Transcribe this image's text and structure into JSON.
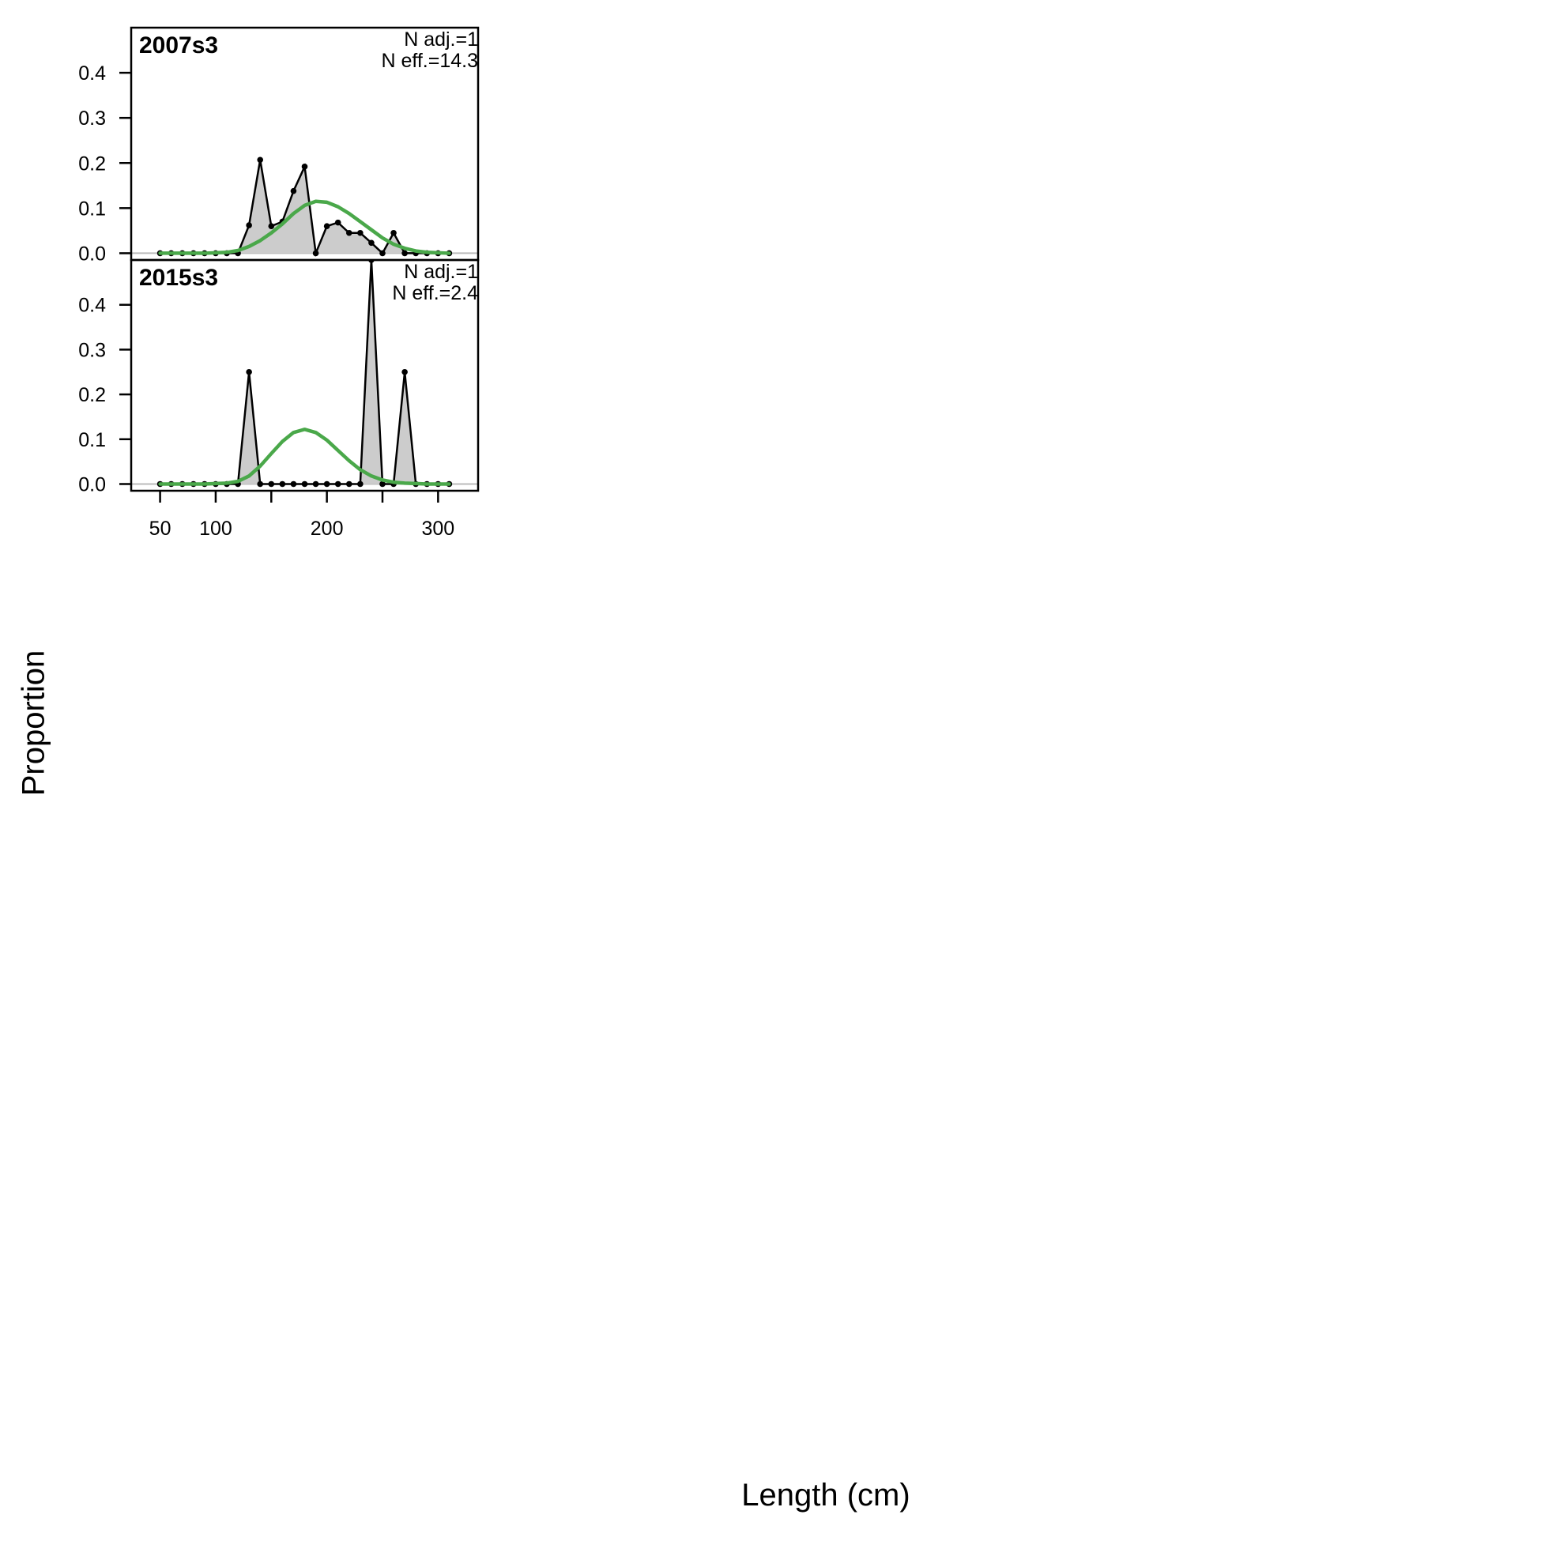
{
  "chart_data": {
    "type": "area",
    "xlabel": "Length (cm)",
    "ylabel": "Proportion",
    "x_ticks": [
      50,
      100,
      200,
      300
    ],
    "x_minor_ticks": [
      150,
      250
    ],
    "xlim": [
      24,
      336
    ],
    "y_ticks": [
      0.0,
      0.1,
      0.2,
      0.3,
      0.4
    ],
    "y_tick_labels": [
      "0.0",
      "0.1",
      "0.2",
      "0.3",
      "0.4"
    ],
    "ylim": [
      -0.015,
      0.5
    ],
    "grid": false,
    "colors": {
      "observed_fill": "#cccccc",
      "observed_line": "#000000",
      "expected_line": "#4aa84a",
      "zero_line": "#bbbbbb"
    },
    "x": [
      50,
      60,
      70,
      80,
      90,
      100,
      110,
      120,
      130,
      140,
      150,
      160,
      170,
      180,
      190,
      200,
      210,
      220,
      230,
      240,
      250,
      260,
      270,
      280,
      290,
      300,
      310
    ],
    "panels": [
      {
        "title": "2007s3",
        "annotations": [
          "N adj.=1",
          "N eff.=14.3"
        ],
        "observed": [
          0,
          0,
          0,
          0,
          0,
          0,
          0,
          0,
          0.062,
          0.207,
          0.06,
          0.07,
          0.138,
          0.192,
          0,
          0.06,
          0.068,
          0.045,
          0.045,
          0.023,
          0,
          0.045,
          0,
          0,
          0,
          0,
          0
        ],
        "expected": [
          0,
          0,
          0,
          0,
          0,
          0.001,
          0.002,
          0.006,
          0.015,
          0.028,
          0.045,
          0.065,
          0.088,
          0.106,
          0.115,
          0.113,
          0.103,
          0.088,
          0.07,
          0.052,
          0.034,
          0.02,
          0.011,
          0.005,
          0.002,
          0.001,
          0
        ]
      },
      {
        "title": "2015s3",
        "annotations": [
          "N adj.=1",
          "N eff.=2.4"
        ],
        "observed": [
          0,
          0,
          0,
          0,
          0,
          0,
          0,
          0,
          0.25,
          0,
          0,
          0,
          0,
          0,
          0,
          0,
          0,
          0,
          0,
          0.5,
          0,
          0,
          0.25,
          0,
          0,
          0,
          0
        ],
        "expected": [
          0,
          0,
          0,
          0,
          0,
          0.001,
          0.002,
          0.006,
          0.018,
          0.04,
          0.068,
          0.095,
          0.115,
          0.122,
          0.115,
          0.098,
          0.075,
          0.052,
          0.032,
          0.018,
          0.009,
          0.004,
          0.002,
          0.001,
          0,
          0,
          0
        ]
      }
    ]
  }
}
